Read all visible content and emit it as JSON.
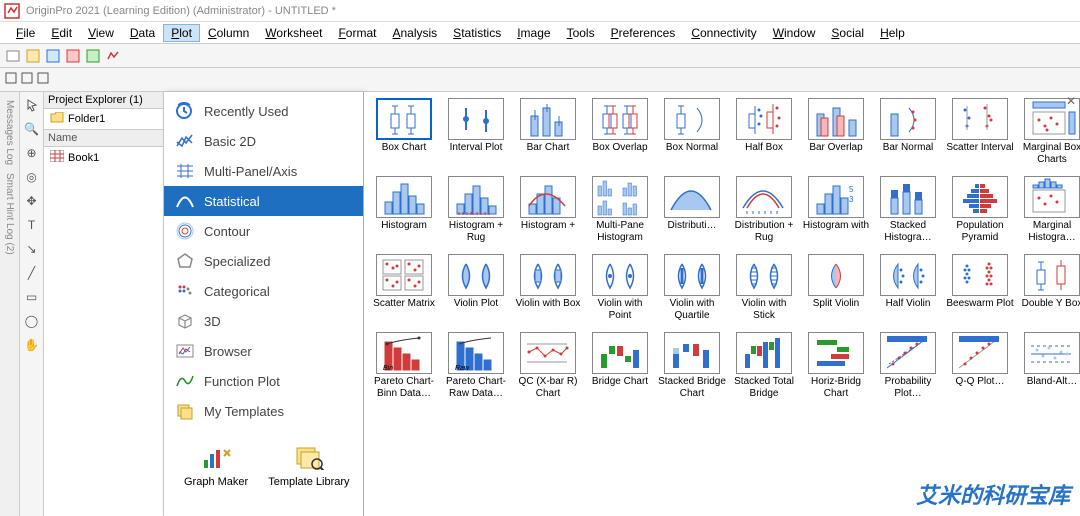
{
  "window": {
    "title": "OriginPro 2021 (Learning Edition) (Administrator) - UNTITLED *"
  },
  "menubar": {
    "items": [
      "File",
      "Edit",
      "View",
      "Data",
      "Plot",
      "Column",
      "Worksheet",
      "Format",
      "Analysis",
      "Statistics",
      "Image",
      "Tools",
      "Preferences",
      "Connectivity",
      "Window",
      "Social",
      "Help"
    ],
    "active": "Plot"
  },
  "explorer": {
    "header": "Project Explorer (1)",
    "folder": "Folder1",
    "name_header": "Name",
    "book": "Book1"
  },
  "left_rail": {
    "label1": "Messages Log",
    "label2": "Smart Hint Log (2)"
  },
  "plot_menu": {
    "items": [
      {
        "label": "Recently Used",
        "icon": "clock"
      },
      {
        "label": "Basic 2D",
        "icon": "line2d"
      },
      {
        "label": "Multi-Panel/Axis",
        "icon": "multi"
      },
      {
        "label": "Statistical",
        "icon": "bell",
        "active": true
      },
      {
        "label": "Contour",
        "icon": "contour"
      },
      {
        "label": "Specialized",
        "icon": "pentagon"
      },
      {
        "label": "Categorical",
        "icon": "dots"
      },
      {
        "label": "3D",
        "icon": "cube"
      },
      {
        "label": "Browser",
        "icon": "browser"
      },
      {
        "label": "Function Plot",
        "icon": "fx"
      },
      {
        "label": "My Templates",
        "icon": "templates"
      }
    ],
    "extras": [
      {
        "label": "Graph Maker"
      },
      {
        "label": "Template Library"
      }
    ]
  },
  "gallery": {
    "rows": [
      [
        "Box Chart",
        "Interval Plot",
        "Bar Chart",
        "Box Overlap",
        "Box Normal",
        "Half Box",
        "Bar Overlap",
        "Bar Normal",
        "Scatter Interval",
        "Marginal Box Charts"
      ],
      [
        "Histogram",
        "Histogram + Rug",
        "Histogram +",
        "Multi-Pane Histogram",
        "Distributi…",
        "Distribution + Rug",
        "Histogram with",
        "Stacked Histogra…",
        "Population Pyramid",
        "Marginal Histogra…"
      ],
      [
        "Scatter Matrix",
        "Violin Plot",
        "Violin with Box",
        "Violin with Point",
        "Violin with Quartile",
        "Violin with Stick",
        "Split Violin",
        "Half Violin",
        "Beeswarm Plot",
        "Double Y Box"
      ],
      [
        "Pareto Chart-Binn Data…",
        "Pareto Chart-Raw Data…",
        "QC (X-bar R) Chart",
        "Bridge Chart",
        "Stacked Bridge Chart",
        "Stacked Total Bridge",
        "Horiz-Bridg Chart",
        "Probability Plot…",
        "Q-Q Plot…",
        "Bland-Alt…"
      ]
    ],
    "selected": [
      0,
      0
    ]
  },
  "watermark": "艾米的科研宝库",
  "colors": {
    "accent": "#1e6fbf",
    "blue": "#2e6fd0",
    "red": "#d23b3b",
    "light": "#a8c8f0",
    "grey": "#999"
  }
}
